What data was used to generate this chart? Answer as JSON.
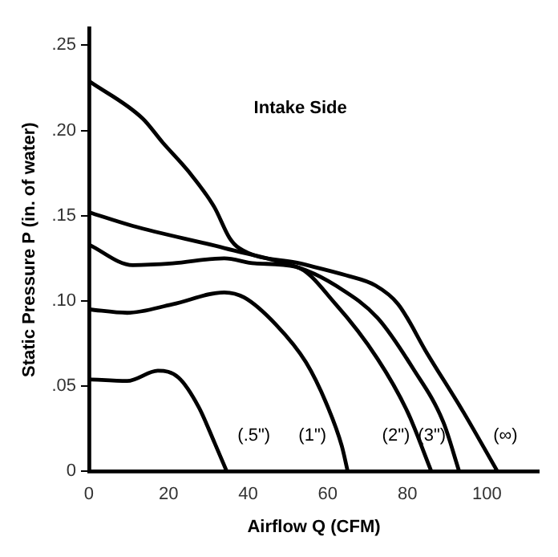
{
  "chart_data": {
    "type": "line",
    "title": "Intake Side",
    "xlabel": "Airflow Q (CFM)",
    "ylabel": "Static Pressure P (in. of water)",
    "xlim": [
      0,
      113
    ],
    "xticks": [
      0,
      20,
      40,
      60,
      80,
      100
    ],
    "ylim": [
      0,
      0.26
    ],
    "yticks": [
      {
        "value": 0,
        "label": "0"
      },
      {
        "value": 0.05,
        "label": ".05"
      },
      {
        "value": 0.1,
        "label": ".10"
      },
      {
        "value": 0.15,
        "label": ".15"
      },
      {
        "value": 0.2,
        "label": ".20"
      },
      {
        "value": 0.25,
        "label": ".25"
      }
    ],
    "grid": false,
    "legend": false,
    "marker": "none",
    "line_style": "solid",
    "series": [
      {
        "color": "#000000",
        "x": [
          0,
          9.6,
          17.3,
          22.5,
          27.5,
          31.5,
          34.6
        ],
        "values": [
          0.054,
          0.053,
          0.059,
          0.055,
          0.038,
          0.017,
          0
        ]
      },
      {
        "color": "#000000",
        "x": [
          0,
          9.6,
          21,
          34,
          39,
          47,
          54.5,
          59.6,
          63.5,
          65
        ],
        "values": [
          0.095,
          0.093,
          0.098,
          0.105,
          0.102,
          0.086,
          0.064,
          0.04,
          0.015,
          0
        ]
      },
      {
        "color": "#000000",
        "x": [
          0,
          11,
          21,
          34,
          41.7,
          52,
          62,
          72.5,
          80,
          86
        ],
        "values": [
          0.133,
          0.121,
          0.122,
          0.125,
          0.122,
          0.12,
          0.098,
          0.066,
          0.035,
          0
        ]
      },
      {
        "color": "#000000",
        "x": [
          0,
          11,
          34,
          54.5,
          62,
          72.5,
          81.5,
          89,
          93
        ],
        "values": [
          0.152,
          0.144,
          0.131,
          0.118,
          0.109,
          0.09,
          0.06,
          0.029,
          0
        ]
      },
      {
        "color": "#000000",
        "x": [
          0,
          13.5,
          18.5,
          25,
          31.5,
          35.3,
          37.7,
          53,
          64.6,
          72,
          77.7,
          85,
          94,
          102.6
        ],
        "values": [
          0.229,
          0.207,
          0.193,
          0.176,
          0.155,
          0.137,
          0.131,
          0.122,
          0.115,
          0.109,
          0.098,
          0.069,
          0.035,
          0
        ]
      }
    ],
    "annotations": [
      "(.5\")",
      "(1\")",
      "(2\")",
      "(3\")",
      "(∞)"
    ]
  }
}
